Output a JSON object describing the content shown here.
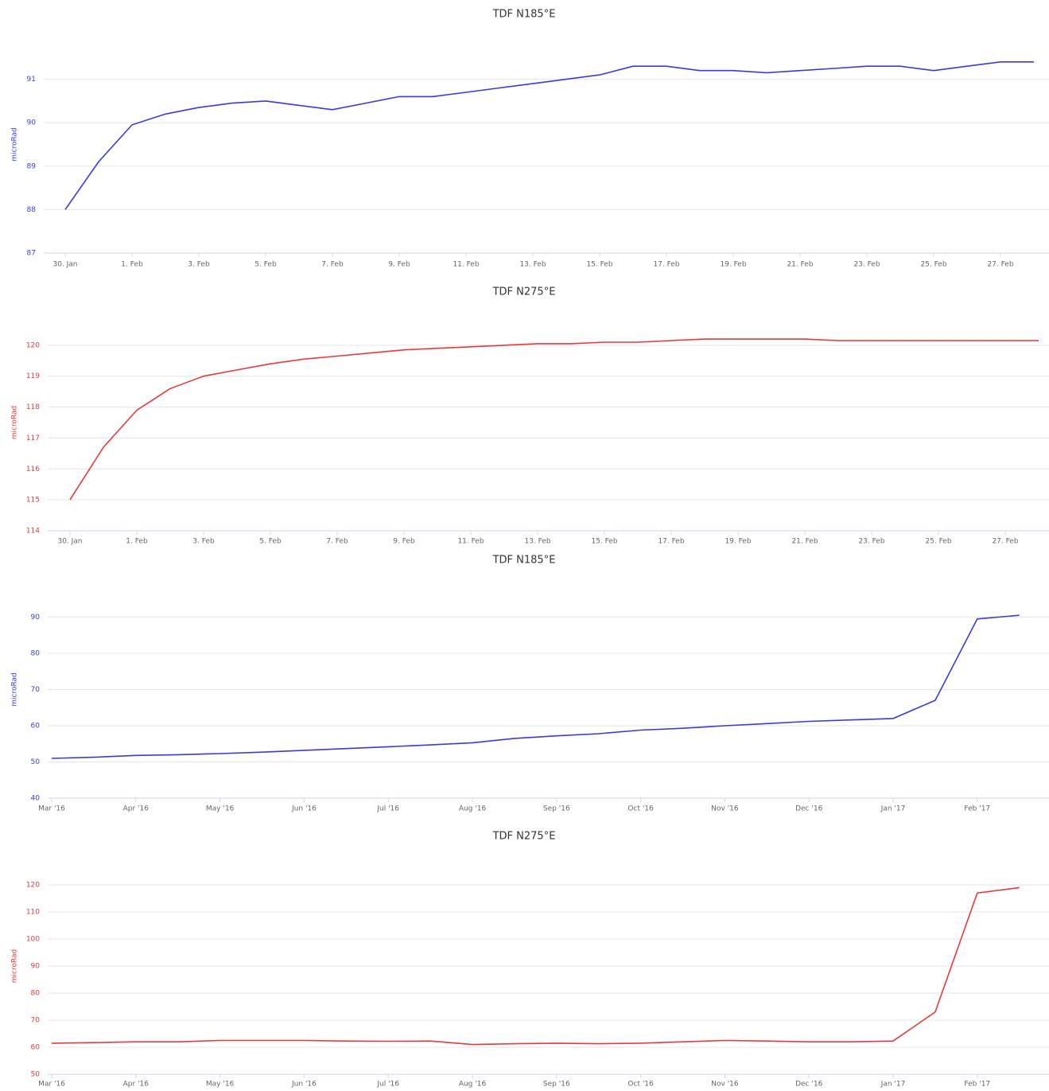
{
  "chart_data": [
    {
      "type": "line",
      "title": "TDF N185°E",
      "y_label": "microRad",
      "color": "#3a3ae0",
      "categories": [
        "30. Jan",
        null,
        "1. Feb",
        null,
        "3. Feb",
        null,
        "5. Feb",
        null,
        "7. Feb",
        null,
        "9. Feb",
        null,
        "11. Feb",
        null,
        "13. Feb",
        null,
        "15. Feb",
        null,
        "17. Feb",
        null,
        "19. Feb",
        null,
        "21. Feb",
        null,
        "23. Feb",
        null,
        "25. Feb",
        null,
        "27. Feb",
        null
      ],
      "values": [
        88.0,
        89.1,
        89.95,
        90.2,
        90.35,
        90.45,
        90.5,
        90.4,
        90.3,
        90.45,
        90.6,
        90.6,
        90.7,
        90.8,
        90.9,
        91.0,
        91.1,
        91.3,
        91.3,
        91.2,
        91.2,
        91.15,
        91.2,
        91.25,
        91.3,
        91.3,
        91.2,
        91.3,
        91.4,
        91.4
      ],
      "ylim": [
        87,
        92
      ],
      "yticks": [
        87,
        88,
        89,
        90,
        91
      ],
      "grid": true
    },
    {
      "type": "line",
      "title": "TDF N275°E",
      "y_label": "microRad",
      "color": "#e83a3a",
      "categories": [
        "30. Jan",
        null,
        "1. Feb",
        null,
        "3. Feb",
        null,
        "5. Feb",
        null,
        "7. Feb",
        null,
        "9. Feb",
        null,
        "11. Feb",
        null,
        "13. Feb",
        null,
        "15. Feb",
        null,
        "17. Feb",
        null,
        "19. Feb",
        null,
        "21. Feb",
        null,
        "23. Feb",
        null,
        "25. Feb",
        null,
        "27. Feb",
        null
      ],
      "values": [
        115.0,
        116.7,
        117.9,
        118.6,
        119.0,
        119.2,
        119.4,
        119.55,
        119.65,
        119.75,
        119.85,
        119.9,
        119.95,
        120.0,
        120.05,
        120.05,
        120.1,
        120.1,
        120.15,
        120.2,
        120.2,
        120.2,
        120.2,
        120.15,
        120.15,
        120.15,
        120.15,
        120.15,
        120.15,
        120.15
      ],
      "ylim": [
        114,
        121
      ],
      "yticks": [
        114,
        115,
        116,
        117,
        118,
        119,
        120
      ],
      "grid": true
    },
    {
      "type": "line",
      "title": "TDF N185°E",
      "y_label": "microRad",
      "color": "#3a3ae0",
      "categories": [
        "Mar '16",
        null,
        "Apr '16",
        null,
        "May '16",
        null,
        "Jun '16",
        null,
        "Jul '16",
        null,
        "Aug '16",
        null,
        "Sep '16",
        null,
        "Oct '16",
        null,
        "Nov '16",
        null,
        "Dec '16",
        null,
        "Jan '17",
        null,
        "Feb '17",
        null
      ],
      "values": [
        51,
        51.3,
        51.8,
        52,
        52.3,
        52.7,
        53.2,
        53.7,
        54.2,
        54.7,
        55.3,
        56.5,
        57.2,
        57.8,
        58.8,
        59.3,
        60,
        60.6,
        61.2,
        61.6,
        62,
        67,
        89.5,
        90.5
      ],
      "ylim": [
        40,
        100
      ],
      "yticks": [
        40,
        50,
        60,
        70,
        80,
        90
      ],
      "grid": true
    },
    {
      "type": "line",
      "title": "TDF N275°E",
      "y_label": "microRad",
      "color": "#e83a3a",
      "categories": [
        "Mar '16",
        null,
        "Apr '16",
        null,
        "May '16",
        null,
        "Jun '16",
        null,
        "Jul '16",
        null,
        "Aug '16",
        null,
        "Sep '16",
        null,
        "Oct '16",
        null,
        "Nov '16",
        null,
        "Dec '16",
        null,
        "Jan '17",
        null,
        "Feb '17",
        null
      ],
      "values": [
        61.5,
        61.7,
        62,
        62,
        62.5,
        62.5,
        62.5,
        62.3,
        62.2,
        62.3,
        61,
        61.3,
        61.5,
        61.3,
        61.5,
        62,
        62.5,
        62.3,
        62,
        62,
        62.3,
        73,
        117,
        119
      ],
      "ylim": [
        50,
        130
      ],
      "yticks": [
        50,
        60,
        70,
        80,
        90,
        100,
        110,
        120
      ],
      "grid": true
    }
  ]
}
